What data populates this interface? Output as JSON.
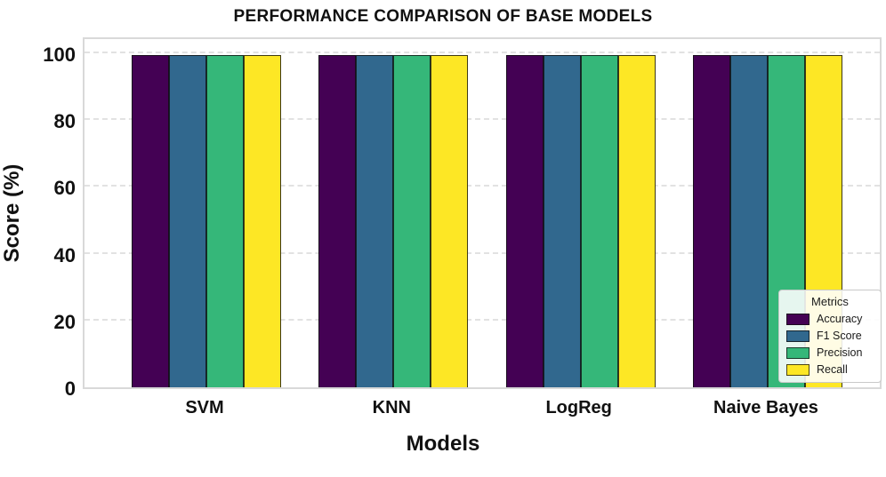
{
  "title": "PERFORMANCE COMPARISON OF BASE MODELS",
  "chart_data": {
    "type": "bar",
    "title": "PERFORMANCE COMPARISON OF BASE MODELS",
    "xlabel": "Models",
    "ylabel": "Score (%)",
    "categories": [
      "SVM",
      "KNN",
      "LogReg",
      "Naive Bayes"
    ],
    "series": [
      {
        "name": "Accuracy",
        "color": "#440154",
        "values": [
          99.5,
          99.5,
          99.5,
          99.5
        ]
      },
      {
        "name": "F1 Score",
        "color": "#31688e",
        "values": [
          99.5,
          99.5,
          99.5,
          99.5
        ]
      },
      {
        "name": "Precision",
        "color": "#35b779",
        "values": [
          99.5,
          99.5,
          99.5,
          99.5
        ]
      },
      {
        "name": "Recall",
        "color": "#fde725",
        "values": [
          99.5,
          99.5,
          99.5,
          99.5
        ]
      }
    ],
    "yticks": [
      0,
      20,
      40,
      60,
      80,
      100
    ],
    "ylim": [
      0,
      105.3
    ],
    "grid": "horizontal-dashed",
    "legend": {
      "title": "Metrics",
      "position": "lower right"
    }
  }
}
